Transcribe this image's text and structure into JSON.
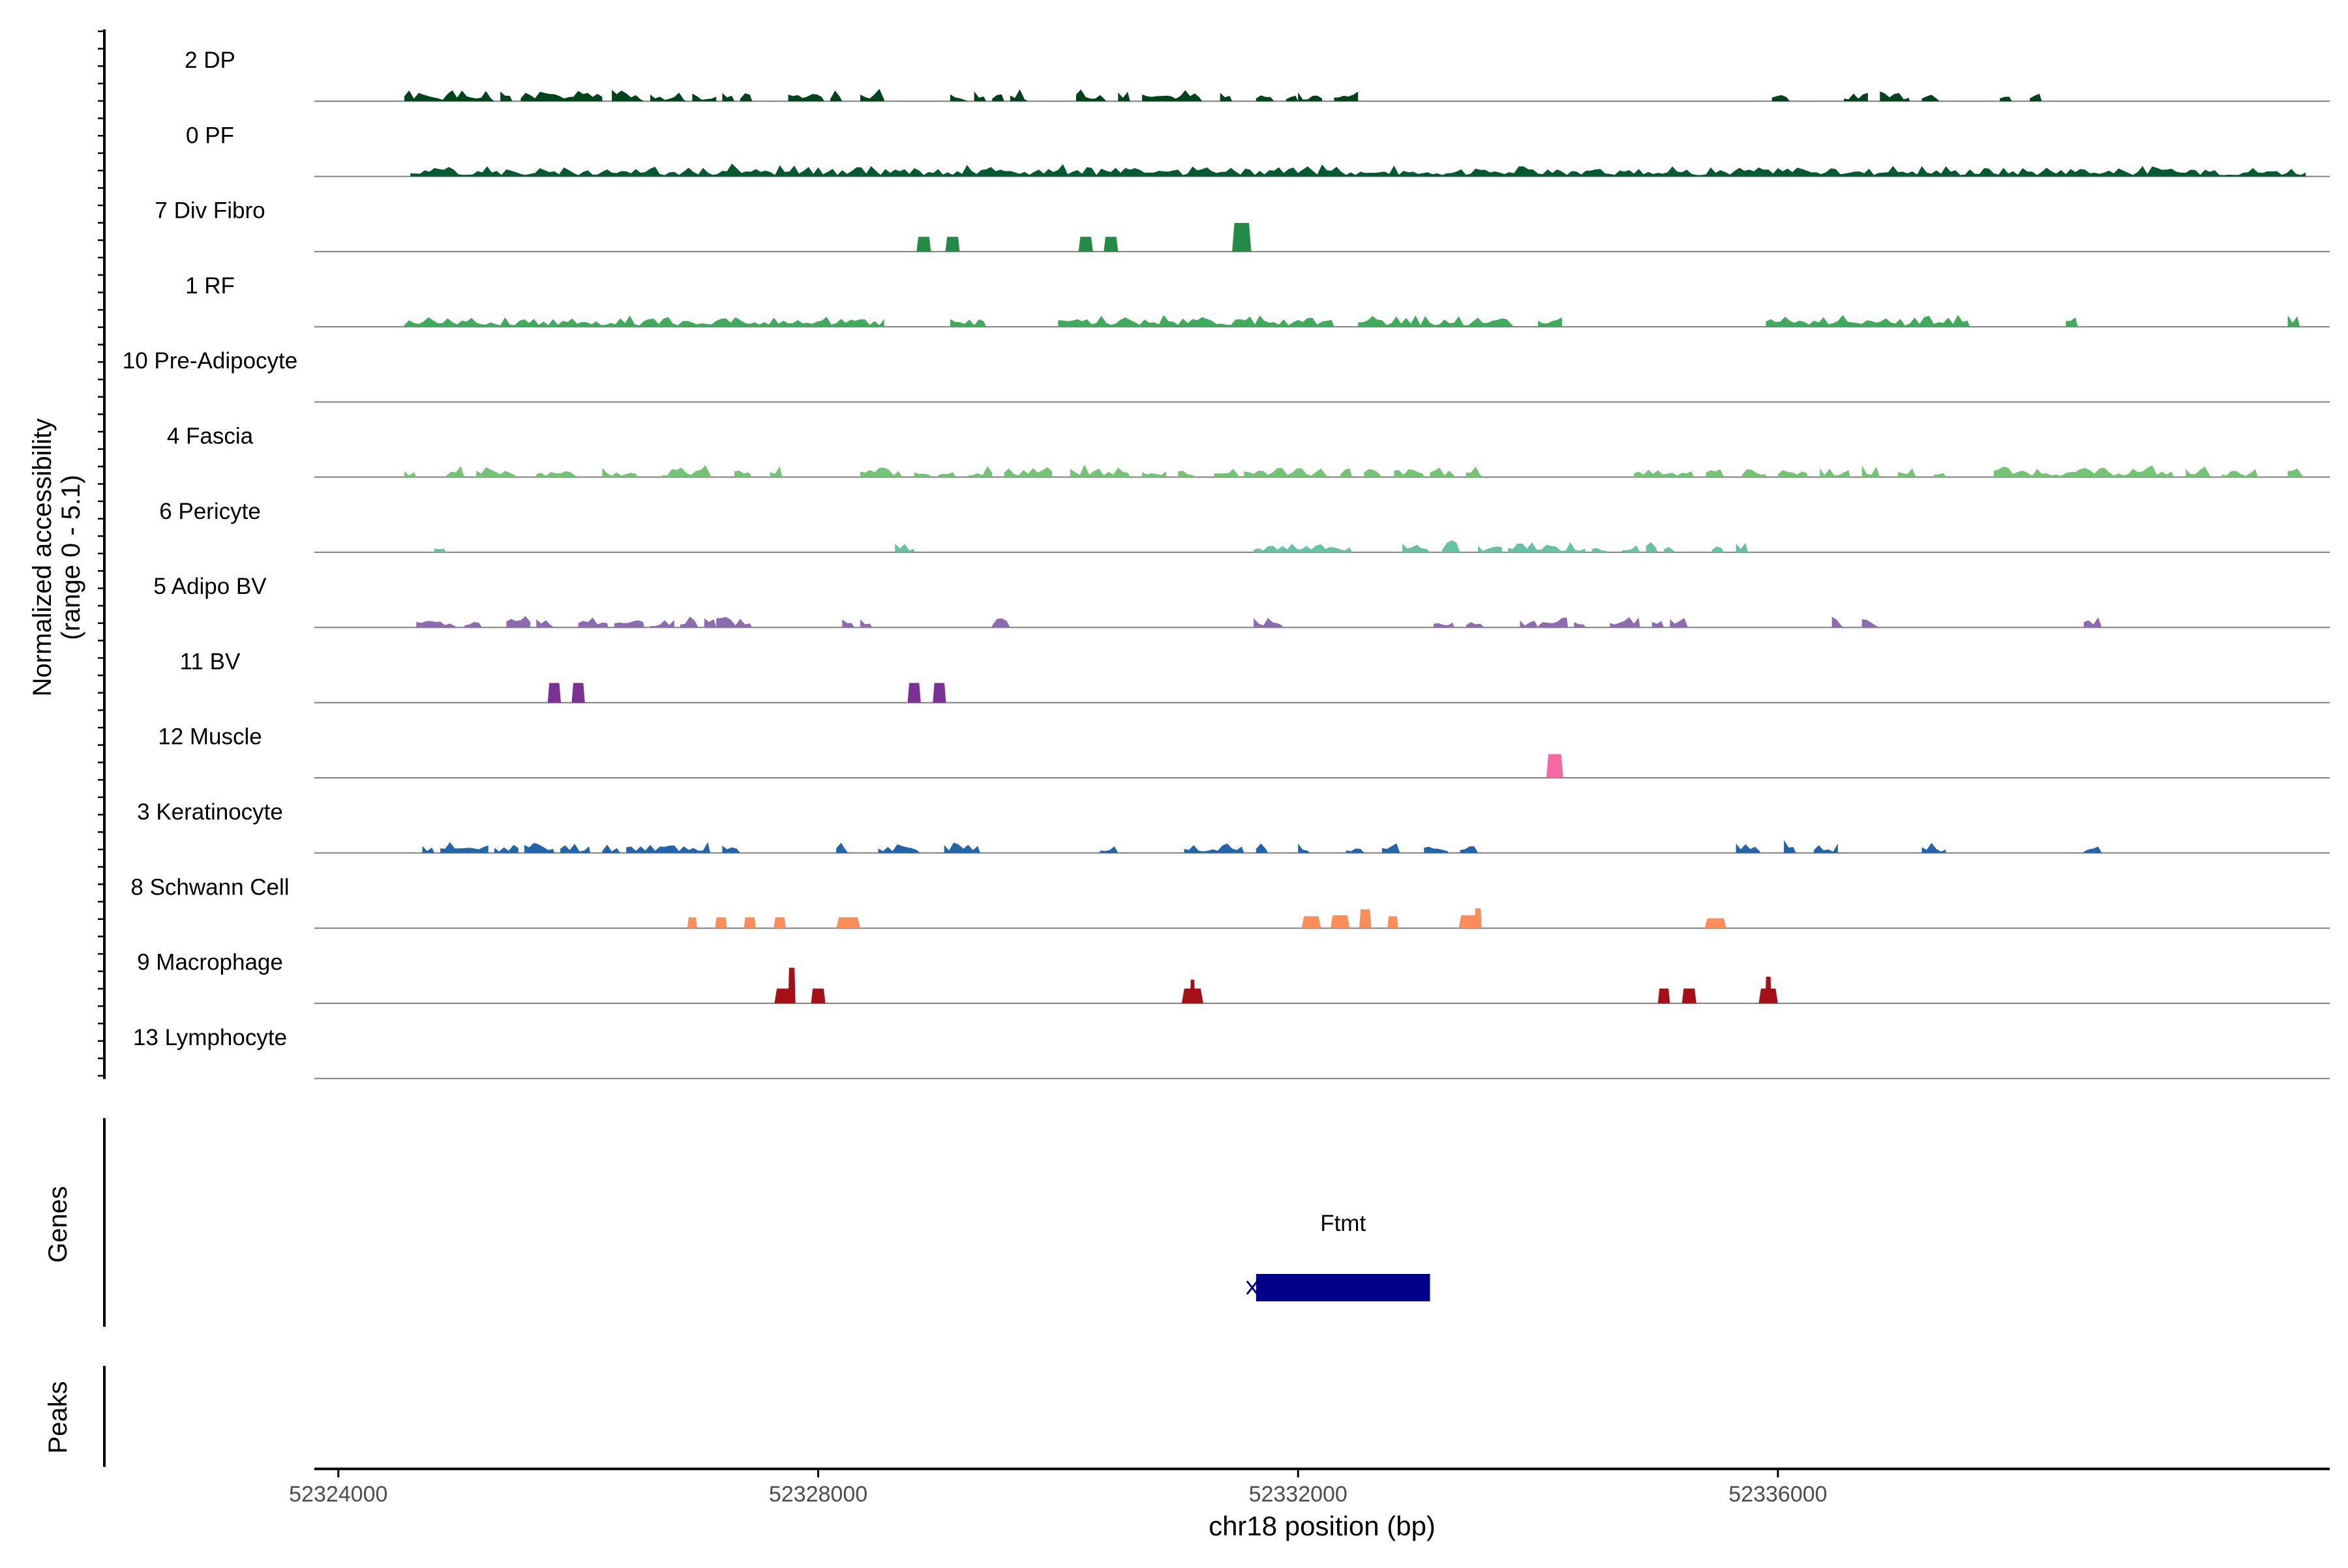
{
  "chart_data": {
    "type": "area",
    "chromosome": "chr18",
    "xlabel": "chr18 position (bp)",
    "ylabel_line1": "Normalized accessibility",
    "ylabel_line2": "(range 0 - 5.1)",
    "xlim": [
      52323800,
      52340600
    ],
    "ylim": [
      0,
      5.1
    ],
    "x_ticks": [
      52324000,
      52328000,
      52332000,
      52336000
    ],
    "x_tick_labels": [
      "52324000",
      "52328000",
      "52332000",
      "52336000"
    ],
    "grid": false,
    "legend": "none",
    "series": [
      {
        "name": "2 DP",
        "color": "#00441b",
        "seed": 1,
        "blocks": [
          [
            52324550,
            52325300
          ],
          [
            52325350,
            52325450
          ],
          [
            52325520,
            52326200
          ],
          [
            52326280,
            52326550
          ],
          [
            52326600,
            52326900
          ],
          [
            52326950,
            52327150
          ],
          [
            52327200,
            52327300
          ],
          [
            52327350,
            52327450
          ],
          [
            52327750,
            52328050
          ],
          [
            52328100,
            52328200
          ],
          [
            52328350,
            52328550
          ],
          [
            52329100,
            52329250
          ],
          [
            52329300,
            52329400
          ],
          [
            52329450,
            52329550
          ],
          [
            52329600,
            52329750
          ],
          [
            52330150,
            52330400
          ],
          [
            52330500,
            52330600
          ],
          [
            52330700,
            52331200
          ],
          [
            52331350,
            52331450
          ],
          [
            52331650,
            52331800
          ],
          [
            52331900,
            52332000
          ],
          [
            52332000,
            52332200
          ],
          [
            52332300,
            52332500
          ],
          [
            52335950,
            52336100
          ],
          [
            52336550,
            52336750
          ],
          [
            52336850,
            52337100
          ],
          [
            52337200,
            52337350
          ],
          [
            52337850,
            52337950
          ],
          [
            52338100,
            52338200
          ]
        ]
      },
      {
        "name": "0 PF",
        "color": "#005a32",
        "seed": 2,
        "blocks": [
          [
            52324600,
            52340400
          ]
        ]
      },
      {
        "name": "7 Div Fibro",
        "color": "#238b45",
        "seed": 3,
        "peaks": [
          [
            52328880,
            120,
            0.75
          ],
          [
            52329120,
            120,
            0.75
          ],
          [
            52330230,
            120,
            0.75
          ],
          [
            52330440,
            120,
            0.75
          ],
          [
            52331530,
            160,
            1.45
          ]
        ]
      },
      {
        "name": "1 RF",
        "color": "#41ab5d",
        "seed": 4,
        "blocks": [
          [
            52324550,
            52328550
          ],
          [
            52329100,
            52329400
          ],
          [
            52330000,
            52332300
          ],
          [
            52332500,
            52333800
          ],
          [
            52334000,
            52334200
          ],
          [
            52335900,
            52337600
          ],
          [
            52338400,
            52338500
          ],
          [
            52340250,
            52340350
          ]
        ]
      },
      {
        "name": "10 Pre-Adipocyte",
        "color": "#74c476",
        "seed": 5,
        "blocks": []
      },
      {
        "name": "4 Fascia",
        "color": "#74c476",
        "seed": 6,
        "blocks": [
          [
            52324550,
            52324650
          ],
          [
            52324900,
            52325050
          ],
          [
            52325150,
            52325500
          ],
          [
            52325650,
            52326000
          ],
          [
            52326200,
            52326500
          ],
          [
            52326700,
            52327100
          ],
          [
            52327300,
            52327450
          ],
          [
            52327600,
            52327700
          ],
          [
            52328350,
            52328700
          ],
          [
            52328800,
            52328950
          ],
          [
            52329000,
            52329150
          ],
          [
            52329250,
            52329450
          ],
          [
            52329550,
            52329950
          ],
          [
            52330100,
            52330600
          ],
          [
            52330700,
            52330900
          ],
          [
            52331000,
            52331150
          ],
          [
            52331300,
            52331500
          ],
          [
            52331550,
            52332250
          ],
          [
            52332350,
            52332450
          ],
          [
            52332550,
            52332700
          ],
          [
            52332800,
            52333050
          ],
          [
            52333100,
            52333300
          ],
          [
            52333400,
            52333550
          ],
          [
            52334800,
            52335300
          ],
          [
            52335400,
            52335550
          ],
          [
            52335700,
            52335900
          ],
          [
            52336000,
            52336250
          ],
          [
            52336350,
            52336600
          ],
          [
            52336700,
            52336850
          ],
          [
            52337000,
            52337150
          ],
          [
            52337300,
            52337400
          ],
          [
            52337800,
            52339300
          ],
          [
            52339400,
            52339600
          ],
          [
            52339700,
            52340000
          ],
          [
            52340250,
            52340400
          ]
        ]
      },
      {
        "name": "6 Pericyte",
        "color": "#66c2a4",
        "seed": 7,
        "blocks": [
          [
            52324800,
            52324900
          ],
          [
            52328640,
            52328800
          ],
          [
            52331630,
            52332450
          ],
          [
            52332870,
            52333100
          ],
          [
            52333200,
            52333350
          ],
          [
            52333500,
            52333700
          ],
          [
            52333750,
            52334400
          ],
          [
            52334450,
            52334600
          ],
          [
            52334700,
            52334850
          ],
          [
            52334900,
            52335000
          ],
          [
            52335050,
            52335150
          ],
          [
            52335450,
            52335550
          ],
          [
            52335650,
            52335750
          ]
        ]
      },
      {
        "name": "5 Adipo BV",
        "color": "#8c6bb1",
        "seed": 8,
        "blocks": [
          [
            52324650,
            52325000
          ],
          [
            52325050,
            52325200
          ],
          [
            52325400,
            52325600
          ],
          [
            52325650,
            52325800
          ],
          [
            52326000,
            52326250
          ],
          [
            52326300,
            52326550
          ],
          [
            52326600,
            52326800
          ],
          [
            52326850,
            52327000
          ],
          [
            52327050,
            52327150
          ],
          [
            52327150,
            52327450
          ],
          [
            52328200,
            52328300
          ],
          [
            52328350,
            52328450
          ],
          [
            52329450,
            52329600
          ],
          [
            52331630,
            52331870
          ],
          [
            52333130,
            52333300
          ],
          [
            52333400,
            52333550
          ],
          [
            52333850,
            52334000
          ],
          [
            52334000,
            52334250
          ],
          [
            52334300,
            52334400
          ],
          [
            52334600,
            52334850
          ],
          [
            52334950,
            52335050
          ],
          [
            52335100,
            52335250
          ],
          [
            52336450,
            52336550
          ],
          [
            52336700,
            52336850
          ],
          [
            52338550,
            52338700
          ]
        ]
      },
      {
        "name": "11 BV",
        "color": "#7b3294",
        "seed": 9,
        "peaks": [
          [
            52325800,
            110,
            1.0
          ],
          [
            52326000,
            110,
            1.0
          ],
          [
            52328800,
            110,
            1.0
          ],
          [
            52329010,
            110,
            1.0
          ]
        ]
      },
      {
        "name": "12 Muscle",
        "color": "#f768a1",
        "seed": 10,
        "peaks": [
          [
            52334140,
            140,
            1.2
          ]
        ]
      },
      {
        "name": "3 Keratinocyte",
        "color": "#2166ac",
        "seed": 11,
        "blocks": [
          [
            52324700,
            52324800
          ],
          [
            52324850,
            52325250
          ],
          [
            52325300,
            52325500
          ],
          [
            52325550,
            52325800
          ],
          [
            52325850,
            52326100
          ],
          [
            52326200,
            52326350
          ],
          [
            52326400,
            52327100
          ],
          [
            52327200,
            52327350
          ],
          [
            52328150,
            52328250
          ],
          [
            52328500,
            52328850
          ],
          [
            52329050,
            52329350
          ],
          [
            52330350,
            52330500
          ],
          [
            52331050,
            52331550
          ],
          [
            52331650,
            52331750
          ],
          [
            52332000,
            52332100
          ],
          [
            52332400,
            52332550
          ],
          [
            52332700,
            52332850
          ],
          [
            52333050,
            52333250
          ],
          [
            52333350,
            52333500
          ],
          [
            52335650,
            52335850
          ],
          [
            52336050,
            52336150
          ],
          [
            52336300,
            52336500
          ],
          [
            52337200,
            52337400
          ],
          [
            52338550,
            52338700
          ]
        ]
      },
      {
        "name": "8 Schwann Cell",
        "color": "#fc8d59",
        "seed": 12,
        "peaks": [
          [
            52326950,
            80,
            0.55
          ],
          [
            52327190,
            100,
            0.55
          ],
          [
            52327430,
            100,
            0.55
          ],
          [
            52327680,
            100,
            0.55
          ],
          [
            52328250,
            200,
            0.55
          ],
          [
            52332110,
            160,
            0.6
          ],
          [
            52332350,
            160,
            0.65
          ],
          [
            52332560,
            100,
            0.95
          ],
          [
            52332790,
            90,
            0.6
          ],
          [
            52333420,
            160,
            0.65
          ],
          [
            52333500,
            60,
            1.0
          ],
          [
            52335480,
            180,
            0.5
          ]
        ]
      },
      {
        "name": "9 Macrophage",
        "color": "#a50f15",
        "seed": 13,
        "peaks": [
          [
            52327720,
            170,
            0.75
          ],
          [
            52327780,
            60,
            1.8
          ],
          [
            52328000,
            120,
            0.75
          ],
          [
            52331120,
            180,
            0.75
          ],
          [
            52331120,
            40,
            1.2
          ],
          [
            52335050,
            100,
            0.75
          ],
          [
            52335260,
            120,
            0.75
          ],
          [
            52335920,
            160,
            0.75
          ],
          [
            52335920,
            50,
            1.35
          ]
        ]
      },
      {
        "name": "13 Lymphocyte",
        "color": "#e31a1c",
        "seed": 14,
        "blocks": []
      }
    ],
    "genes_label": "Genes",
    "peaks_label": "Peaks",
    "genes": [
      {
        "name": "Ftmt",
        "start": 52331650,
        "end": 52333100,
        "strand": "-",
        "color": "#00008b"
      }
    ]
  }
}
